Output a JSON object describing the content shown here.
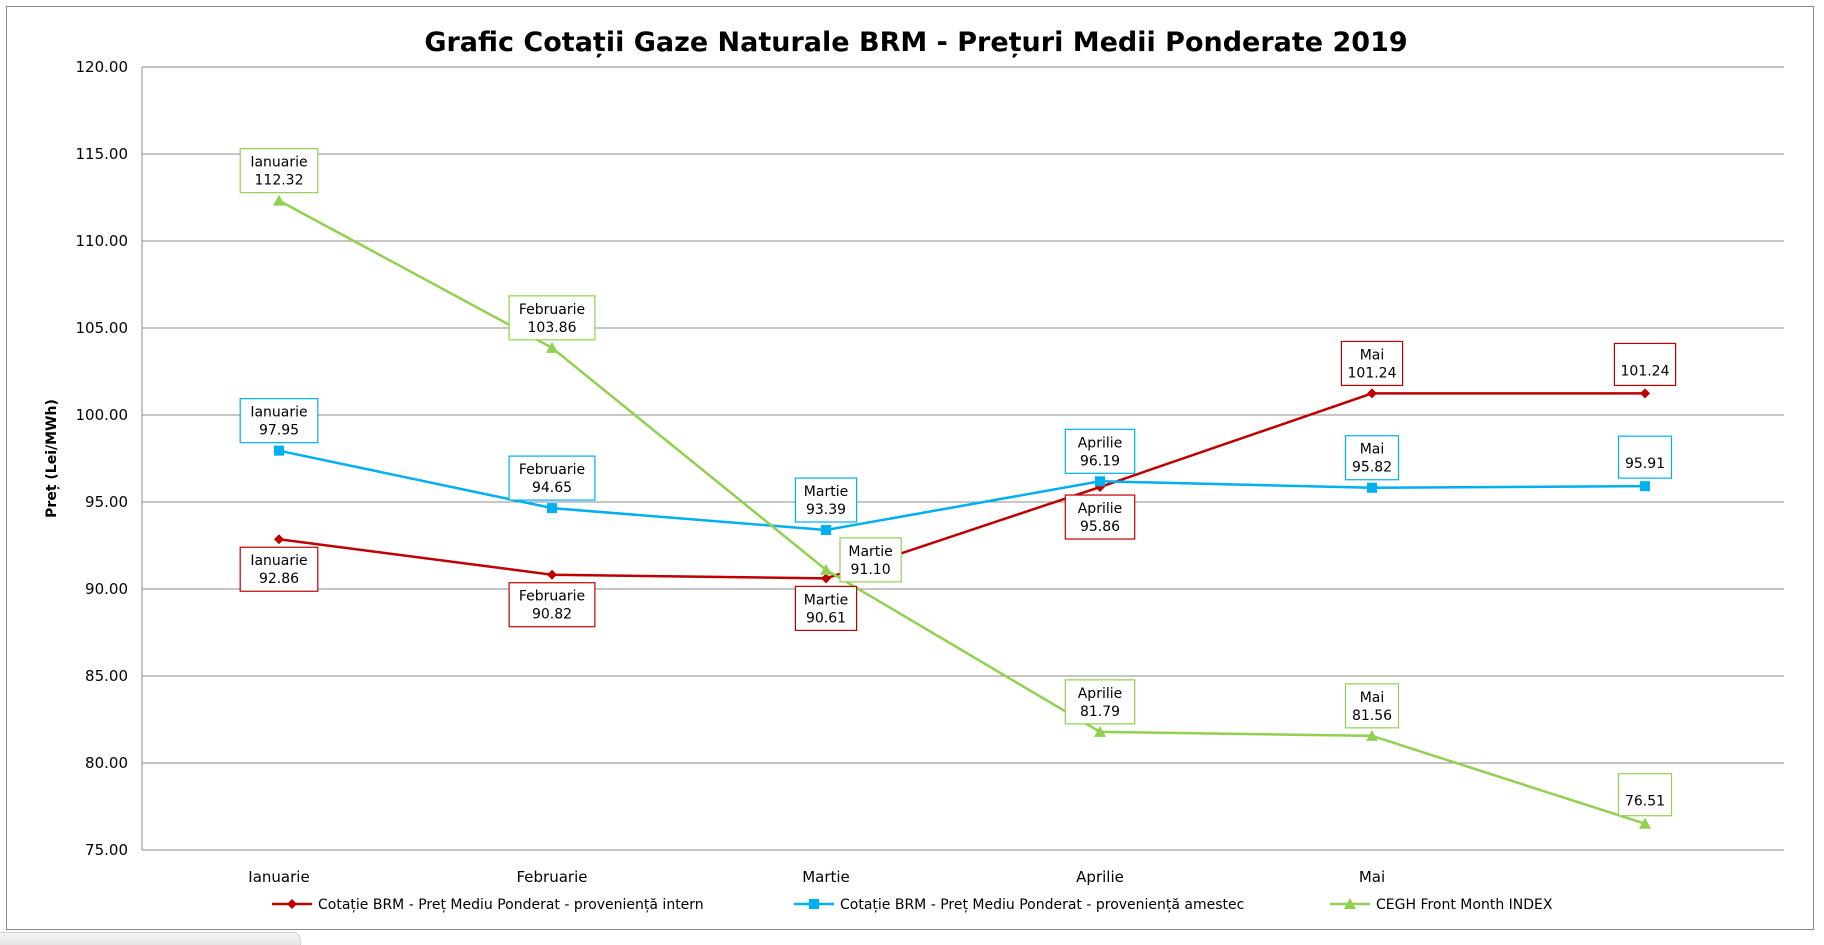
{
  "chart_data": {
    "type": "line",
    "title": "Grafic Cotații Gaze Naturale BRM - Prețuri Medii Ponderate 2019",
    "ylabel": "Preț (Lei/MWh)",
    "xlabel": "",
    "ylim": [
      75,
      120
    ],
    "y_ticks": [
      "75.00",
      "80.00",
      "85.00",
      "90.00",
      "95.00",
      "100.00",
      "105.00",
      "110.00",
      "115.00",
      "120.00"
    ],
    "y_tick_values": [
      75,
      80,
      85,
      90,
      95,
      100,
      105,
      110,
      115,
      120
    ],
    "categories": [
      "Ianuarie",
      "Februarie",
      "Martie",
      "Aprilie",
      "Mai",
      ""
    ],
    "grid": "horizontal",
    "legend_position": "bottom",
    "series": [
      {
        "name": "Cotație BRM - Preț Mediu Ponderat - proveniență intern",
        "color": "#c00000",
        "marker": "diamond",
        "values": [
          92.86,
          90.82,
          90.61,
          95.86,
          101.24,
          101.24
        ],
        "labels": [
          {
            "category": "Ianuarie",
            "value": "92.86",
            "pos": "below"
          },
          {
            "category": "Februarie",
            "value": "90.82",
            "pos": "below"
          },
          {
            "category": "Martie",
            "value": "90.61",
            "pos": "below"
          },
          {
            "category": "Aprilie",
            "value": "95.86",
            "pos": "below"
          },
          {
            "category": "Mai",
            "value": "101.24",
            "pos": "above"
          },
          {
            "category": "",
            "value": "101.24",
            "pos": "above"
          }
        ]
      },
      {
        "name": "Cotație BRM - Preț Mediu Ponderat - proveniență amestec",
        "color": "#00b0f0",
        "marker": "square",
        "values": [
          97.95,
          94.65,
          93.39,
          96.19,
          95.82,
          95.91
        ],
        "labels": [
          {
            "category": "Ianuarie",
            "value": "97.95",
            "pos": "above"
          },
          {
            "category": "Februarie",
            "value": "94.65",
            "pos": "above"
          },
          {
            "category": "Martie",
            "value": "93.39",
            "pos": "above"
          },
          {
            "category": "Aprilie",
            "value": "96.19",
            "pos": "above"
          },
          {
            "category": "Mai",
            "value": "95.82",
            "pos": "above"
          },
          {
            "category": "",
            "value": "95.91",
            "pos": "above"
          }
        ]
      },
      {
        "name": "CEGH Front Month INDEX",
        "color": "#92d050",
        "marker": "triangle",
        "values": [
          112.32,
          103.86,
          91.1,
          81.79,
          81.56,
          76.51
        ],
        "labels": [
          {
            "category": "Ianuarie",
            "value": "112.32",
            "pos": "above"
          },
          {
            "category": "Februarie",
            "value": "103.86",
            "pos": "above"
          },
          {
            "category": "Martie",
            "value": "91.10",
            "pos": "right"
          },
          {
            "category": "Aprilie",
            "value": "81.79",
            "pos": "above"
          },
          {
            "category": "Mai",
            "value": "81.56",
            "pos": "above"
          },
          {
            "category": "",
            "value": "76.51",
            "pos": "above"
          }
        ]
      }
    ]
  }
}
